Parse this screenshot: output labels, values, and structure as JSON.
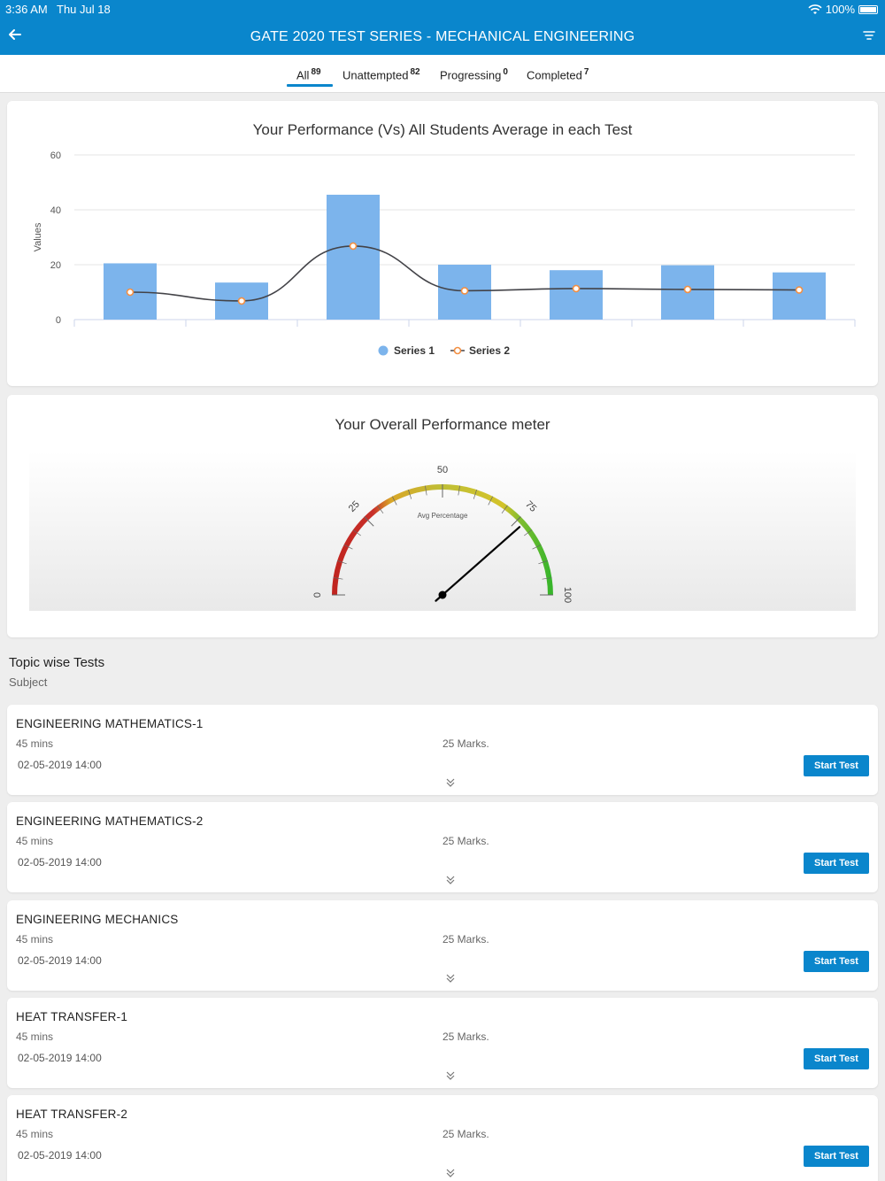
{
  "status": {
    "time": "3:36 AM",
    "date": "Thu Jul 18",
    "battery": "100%"
  },
  "appbar": {
    "title": "GATE 2020 TEST SERIES - MECHANICAL ENGINEERING",
    "icons": [
      "back-arrow-icon",
      "filter-icon"
    ]
  },
  "tabs": [
    {
      "label": "All",
      "count": "89"
    },
    {
      "label": "Unattempted",
      "count": "82"
    },
    {
      "label": "Progressing",
      "count": "0"
    },
    {
      "label": "Completed",
      "count": "7"
    }
  ],
  "chart_data": [
    {
      "type": "bar",
      "title": "Your Performance (Vs) All Students Average in each Test",
      "ylabel": "Values",
      "xlabel": "",
      "ylim": [
        0,
        60
      ],
      "yticks": [
        "0",
        "20",
        "40",
        "60"
      ],
      "categories": [
        "",
        "",
        "",
        "",
        "",
        "",
        ""
      ],
      "series": [
        {
          "name": "Series 1",
          "type": "bar",
          "color": "#7cb4ec",
          "values": [
            20.5,
            13.5,
            45.5,
            20,
            18,
            19.8,
            17.2
          ]
        },
        {
          "name": "Series 2",
          "type": "line",
          "color": "#f28f43",
          "values": [
            10,
            6.8,
            26.8,
            10.5,
            11.3,
            11,
            10.8
          ]
        }
      ],
      "grid": true,
      "legend": "bottom-center"
    },
    {
      "type": "gauge",
      "title": "Your Overall Performance meter",
      "label": "Avg Percentage",
      "range": [
        0,
        100
      ],
      "ticks": [
        "0",
        "25",
        "50",
        "75",
        "100"
      ],
      "value": 77
    }
  ],
  "section": {
    "title": "Topic wise Tests",
    "subtitle": "Subject"
  },
  "tests": [
    {
      "name": "ENGINEERING MATHEMATICS-1",
      "duration": "45 mins",
      "marks": "25 Marks.",
      "date": "02-05-2019 14:00",
      "action": "Start Test"
    },
    {
      "name": "ENGINEERING MATHEMATICS-2",
      "duration": "45 mins",
      "marks": "25 Marks.",
      "date": "02-05-2019 14:00",
      "action": "Start Test"
    },
    {
      "name": "ENGINEERING MECHANICS",
      "duration": "45 mins",
      "marks": "25 Marks.",
      "date": "02-05-2019 14:00",
      "action": "Start Test"
    },
    {
      "name": "HEAT TRANSFER-1",
      "duration": "45 mins",
      "marks": "25 Marks.",
      "date": "02-05-2019 14:00",
      "action": "Start Test"
    },
    {
      "name": "HEAT TRANSFER-2",
      "duration": "45 mins",
      "marks": "25 Marks.",
      "date": "02-05-2019 14:00",
      "action": "Start Test"
    }
  ]
}
